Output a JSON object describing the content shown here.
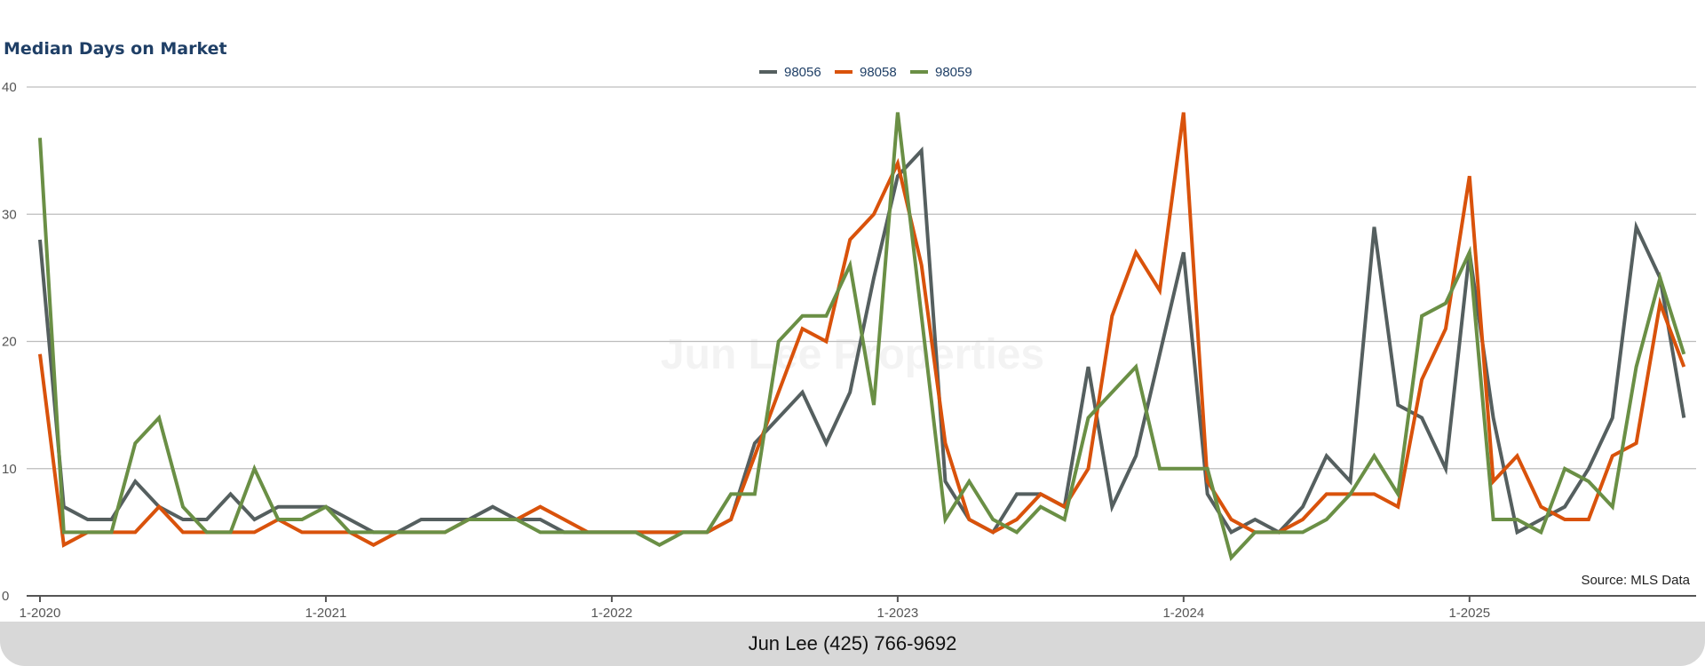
{
  "footer": {
    "contact": "Jun Lee (425) 766-9692"
  },
  "watermark": "Jun Lee Properties",
  "chart_data": {
    "type": "line",
    "title": "Median Days on Market",
    "source": "Source: MLS Data",
    "xlabel": "",
    "ylabel": "",
    "ylim": [
      0,
      40
    ],
    "yticks": [
      0,
      10,
      20,
      30,
      40
    ],
    "grid": true,
    "legend_position": "top-center",
    "x_start": "1-2020",
    "x_end": "10-2025",
    "x_interval": "monthly",
    "xtick_labels": [
      "1-2020",
      "1-2021",
      "1-2022",
      "1-2023",
      "1-2024",
      "1-2025"
    ],
    "series": [
      {
        "name": "98056",
        "color": "#555f5f",
        "values": [
          28,
          7,
          6,
          6,
          9,
          7,
          6,
          6,
          8,
          6,
          7,
          7,
          7,
          6,
          5,
          5,
          6,
          6,
          6,
          7,
          6,
          6,
          5,
          5,
          5,
          5,
          5,
          5,
          5,
          6,
          12,
          14,
          16,
          12,
          16,
          25,
          33,
          35,
          9,
          6,
          5,
          8,
          8,
          7,
          18,
          7,
          11,
          19,
          27,
          8,
          5,
          6,
          5,
          7,
          11,
          9,
          29,
          15,
          14,
          10,
          27,
          14,
          5,
          6,
          7,
          10,
          14,
          29,
          25,
          14
        ]
      },
      {
        "name": "98058",
        "color": "#d9520b",
        "values": [
          19,
          4,
          5,
          5,
          5,
          7,
          5,
          5,
          5,
          5,
          6,
          5,
          5,
          5,
          4,
          5,
          5,
          5,
          6,
          6,
          6,
          7,
          6,
          5,
          5,
          5,
          5,
          5,
          5,
          6,
          11,
          16,
          21,
          20,
          28,
          30,
          34,
          26,
          12,
          6,
          5,
          6,
          8,
          7,
          10,
          22,
          27,
          24,
          38,
          9,
          6,
          5,
          5,
          6,
          8,
          8,
          8,
          7,
          17,
          21,
          33,
          9,
          11,
          7,
          6,
          6,
          11,
          12,
          23,
          18
        ]
      },
      {
        "name": "98059",
        "color": "#6a8f45",
        "values": [
          36,
          5,
          5,
          5,
          12,
          14,
          7,
          5,
          5,
          10,
          6,
          6,
          7,
          5,
          5,
          5,
          5,
          5,
          6,
          6,
          6,
          5,
          5,
          5,
          5,
          5,
          4,
          5,
          5,
          8,
          8,
          20,
          22,
          22,
          26,
          15,
          38,
          22,
          6,
          9,
          6,
          5,
          7,
          6,
          14,
          16,
          18,
          10,
          10,
          10,
          3,
          5,
          5,
          5,
          6,
          8,
          11,
          8,
          22,
          23,
          27,
          6,
          6,
          5,
          10,
          9,
          7,
          18,
          25,
          19
        ]
      }
    ]
  }
}
